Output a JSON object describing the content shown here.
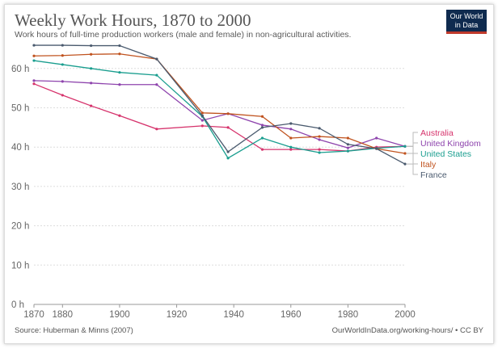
{
  "title": "Weekly Work Hours, 1870 to 2000",
  "subtitle": "Work hours of full-time production workers (male and female) in non-agricultural activities.",
  "logo": "Our World in Data",
  "source": "Source: Huberman & Minns (2007)",
  "url": "OurWorldInData.org/working-hours/ • CC BY",
  "chart_data": {
    "type": "line",
    "title": "Weekly Work Hours, 1870 to 2000",
    "x": [
      1870,
      1880,
      1890,
      1900,
      1913,
      1929,
      1938,
      1950,
      1960,
      1970,
      1980,
      1990,
      2000
    ],
    "xticks": [
      "1870",
      "1880",
      "1900",
      "1920",
      "1940",
      "1960",
      "1980",
      "2000"
    ],
    "yticks": [
      "0 h",
      "10 h",
      "20 h",
      "30 h",
      "40 h",
      "50 h",
      "60 h"
    ],
    "ylim": [
      0,
      65
    ],
    "xlim": [
      1870,
      2000
    ],
    "grid": "horizontal dotted",
    "legend": "right end labels",
    "series": [
      {
        "name": "Australia",
        "color": "#d6336c",
        "values": [
          56.1,
          53.2,
          50.5,
          48,
          44.6,
          45.4,
          45,
          39.4,
          39.4,
          39.4,
          39,
          40,
          40.2
        ]
      },
      {
        "name": "United Kingdom",
        "color": "#8e44ad",
        "values": [
          56.9,
          56.7,
          56.3,
          55.9,
          55.9,
          46.8,
          48.5,
          45.6,
          44.6,
          41.9,
          39.8,
          42.3,
          40.2
        ]
      },
      {
        "name": "United States",
        "color": "#1a9e8f",
        "values": [
          62,
          61,
          60,
          59,
          58.3,
          47.8,
          37.2,
          42.3,
          40,
          38.6,
          39,
          39.7,
          40.2
        ]
      },
      {
        "name": "Italy",
        "color": "#c0531f",
        "values": [
          63.2,
          63.3,
          63.6,
          63.7,
          62.4,
          48.7,
          48.5,
          47.8,
          42.3,
          42.7,
          42.3,
          39.6,
          38.4
        ]
      },
      {
        "name": "France",
        "color": "#4a5a6e",
        "values": [
          65.9,
          65.9,
          65.8,
          65.8,
          62.4,
          48,
          38.8,
          45,
          46,
          44.8,
          40.7,
          39.6,
          35.7
        ]
      }
    ]
  }
}
